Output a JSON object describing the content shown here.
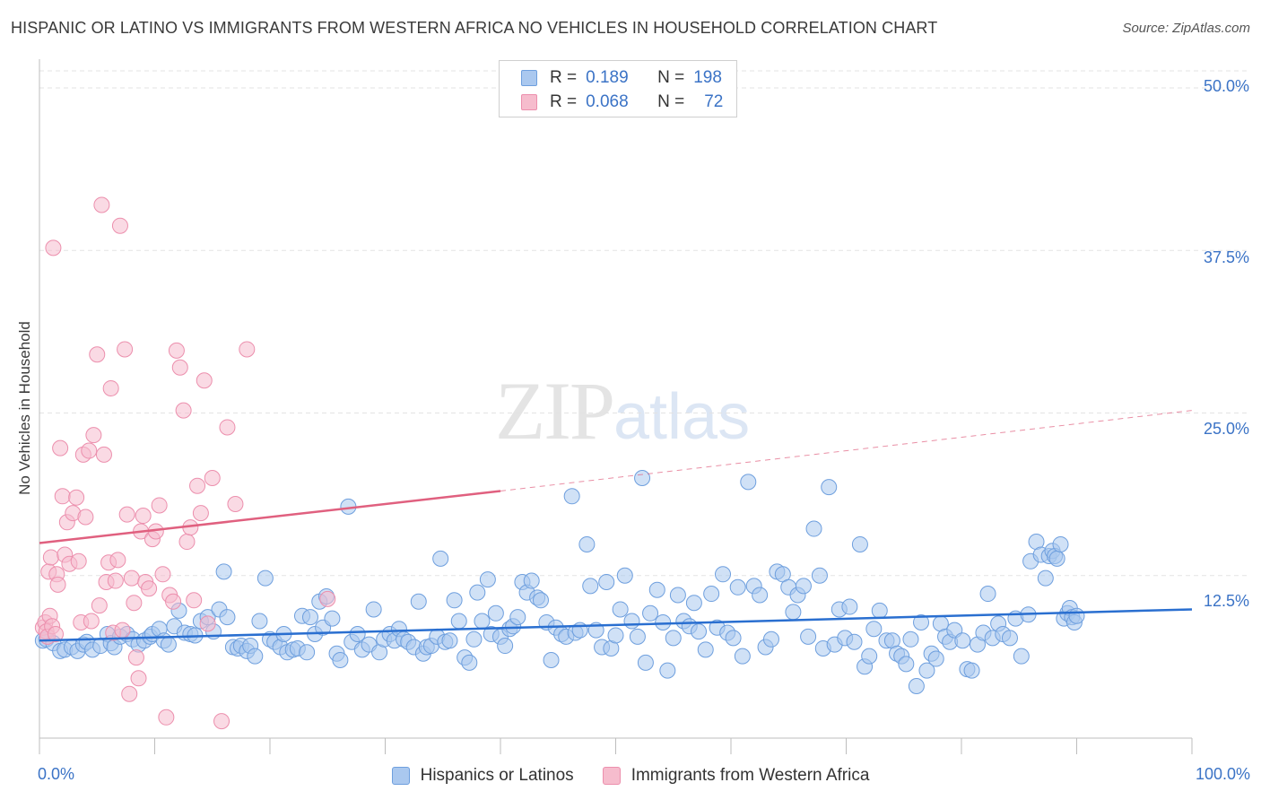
{
  "title": "HISPANIC OR LATINO VS IMMIGRANTS FROM WESTERN AFRICA NO VEHICLES IN HOUSEHOLD CORRELATION CHART",
  "source": "Source: ZipAtlas.com",
  "watermark": {
    "zip": "ZIP",
    "atlas": "atlas"
  },
  "legend": {
    "r_label": "R =",
    "n_label": "N =",
    "series1": {
      "r": "0.189",
      "n": "198"
    },
    "series2": {
      "r": "0.068",
      "n": "72"
    }
  },
  "colors": {
    "blue_fill": "#aac8ef",
    "blue_stroke": "#6e9fde",
    "blue_line": "#2a6fd0",
    "pink_fill": "#f6bccd",
    "pink_stroke": "#ec8fad",
    "pink_line": "#e0607f",
    "tick_text": "#3b73c6"
  },
  "chart_data": {
    "type": "scatter",
    "title": "HISPANIC OR LATINO VS IMMIGRANTS FROM WESTERN AFRICA NO VEHICLES IN HOUSEHOLD CORRELATION CHART",
    "ylabel": "No Vehicles in Household",
    "xlabel": "",
    "xlim": [
      0,
      100
    ],
    "ylim": [
      0,
      50
    ],
    "x_tick_labels": [
      "0.0%",
      "100.0%"
    ],
    "y_tick_labels": [
      "12.5%",
      "25.0%",
      "37.5%",
      "50.0%"
    ],
    "y_ticks": [
      12.5,
      25.0,
      37.5,
      50.0
    ],
    "grid": true,
    "legend_position": "top-center",
    "series": [
      {
        "name": "Hispanics or Latinos",
        "R": 0.189,
        "N": 198,
        "trend": {
          "x0": 0,
          "y0": 7.5,
          "x1": 100,
          "y1": 9.9
        },
        "points": [
          [
            0.3,
            7.5
          ],
          [
            0.6,
            7.6
          ],
          [
            1.2,
            7.3
          ],
          [
            1.8,
            6.7
          ],
          [
            2.2,
            6.8
          ],
          [
            2.8,
            7.0
          ],
          [
            3.3,
            6.7
          ],
          [
            3.8,
            7.2
          ],
          [
            4.1,
            7.4
          ],
          [
            4.6,
            6.8
          ],
          [
            5.3,
            7.1
          ],
          [
            5.9,
            8.0
          ],
          [
            6.2,
            7.3
          ],
          [
            6.5,
            7.0
          ],
          [
            7.0,
            7.8
          ],
          [
            7.6,
            8.0
          ],
          [
            8.1,
            7.6
          ],
          [
            8.6,
            7.2
          ],
          [
            9.1,
            7.5
          ],
          [
            9.6,
            7.8
          ],
          [
            9.8,
            8.0
          ],
          [
            10.4,
            8.4
          ],
          [
            10.8,
            7.5
          ],
          [
            11.2,
            7.2
          ],
          [
            11.7,
            8.6
          ],
          [
            12.1,
            9.8
          ],
          [
            12.6,
            8.1
          ],
          [
            13.1,
            8.0
          ],
          [
            13.5,
            7.9
          ],
          [
            14.0,
            9.0
          ],
          [
            14.6,
            9.3
          ],
          [
            15.1,
            8.2
          ],
          [
            15.6,
            9.9
          ],
          [
            16.0,
            12.8
          ],
          [
            16.3,
            9.3
          ],
          [
            16.8,
            7.0
          ],
          [
            17.2,
            6.9
          ],
          [
            17.5,
            7.1
          ],
          [
            18.0,
            6.7
          ],
          [
            18.3,
            7.1
          ],
          [
            18.7,
            6.3
          ],
          [
            19.1,
            9.0
          ],
          [
            19.6,
            12.3
          ],
          [
            20.0,
            7.6
          ],
          [
            20.4,
            7.4
          ],
          [
            20.9,
            7.0
          ],
          [
            21.2,
            8.0
          ],
          [
            21.5,
            6.6
          ],
          [
            22.0,
            6.8
          ],
          [
            22.4,
            6.9
          ],
          [
            22.8,
            9.4
          ],
          [
            23.2,
            6.6
          ],
          [
            23.5,
            9.3
          ],
          [
            23.9,
            8.0
          ],
          [
            24.3,
            10.5
          ],
          [
            24.6,
            8.5
          ],
          [
            24.9,
            10.9
          ],
          [
            25.4,
            9.2
          ],
          [
            25.8,
            6.5
          ],
          [
            26.1,
            6.0
          ],
          [
            26.8,
            17.8
          ],
          [
            27.1,
            7.4
          ],
          [
            27.6,
            8.0
          ],
          [
            28.0,
            6.8
          ],
          [
            28.6,
            7.2
          ],
          [
            29.0,
            9.9
          ],
          [
            29.5,
            6.6
          ],
          [
            29.9,
            7.6
          ],
          [
            30.4,
            8.0
          ],
          [
            30.8,
            7.5
          ],
          [
            31.2,
            8.4
          ],
          [
            31.6,
            7.6
          ],
          [
            32.0,
            7.4
          ],
          [
            32.5,
            7.0
          ],
          [
            32.9,
            10.5
          ],
          [
            33.3,
            6.5
          ],
          [
            33.6,
            7.0
          ],
          [
            34.0,
            7.1
          ],
          [
            34.5,
            7.8
          ],
          [
            34.8,
            13.8
          ],
          [
            35.2,
            7.4
          ],
          [
            35.6,
            7.5
          ],
          [
            36.0,
            10.6
          ],
          [
            36.4,
            9.0
          ],
          [
            36.9,
            6.2
          ],
          [
            37.3,
            5.8
          ],
          [
            37.7,
            7.6
          ],
          [
            38.0,
            11.2
          ],
          [
            38.4,
            9.0
          ],
          [
            38.9,
            12.2
          ],
          [
            39.2,
            8.0
          ],
          [
            39.6,
            9.6
          ],
          [
            40.0,
            7.8
          ],
          [
            40.4,
            7.1
          ],
          [
            40.8,
            8.4
          ],
          [
            41.1,
            8.6
          ],
          [
            41.5,
            9.3
          ],
          [
            41.9,
            12.0
          ],
          [
            42.3,
            11.2
          ],
          [
            42.7,
            12.1
          ],
          [
            43.2,
            10.8
          ],
          [
            43.5,
            10.6
          ],
          [
            44.0,
            8.9
          ],
          [
            44.4,
            6.0
          ],
          [
            44.8,
            8.5
          ],
          [
            45.3,
            8.0
          ],
          [
            45.7,
            7.8
          ],
          [
            46.2,
            18.6
          ],
          [
            46.5,
            8.1
          ],
          [
            46.9,
            8.3
          ],
          [
            47.5,
            14.9
          ],
          [
            47.8,
            11.7
          ],
          [
            48.3,
            8.3
          ],
          [
            48.8,
            7.0
          ],
          [
            49.2,
            12.0
          ],
          [
            49.6,
            6.9
          ],
          [
            50.0,
            7.9
          ],
          [
            50.4,
            9.9
          ],
          [
            50.8,
            12.5
          ],
          [
            51.4,
            9.0
          ],
          [
            51.9,
            7.8
          ],
          [
            52.3,
            20.0
          ],
          [
            52.6,
            5.8
          ],
          [
            53.0,
            9.6
          ],
          [
            53.6,
            11.4
          ],
          [
            54.1,
            8.9
          ],
          [
            54.5,
            5.2
          ],
          [
            55.0,
            7.7
          ],
          [
            55.4,
            11.0
          ],
          [
            55.9,
            9.0
          ],
          [
            56.4,
            8.6
          ],
          [
            56.8,
            10.4
          ],
          [
            57.2,
            8.2
          ],
          [
            57.8,
            6.8
          ],
          [
            58.3,
            11.1
          ],
          [
            58.8,
            8.5
          ],
          [
            59.3,
            12.6
          ],
          [
            59.7,
            8.1
          ],
          [
            60.2,
            7.7
          ],
          [
            60.6,
            11.6
          ],
          [
            61.0,
            6.3
          ],
          [
            61.5,
            19.7
          ],
          [
            62.0,
            11.7
          ],
          [
            62.5,
            11.0
          ],
          [
            63.0,
            7.0
          ],
          [
            63.5,
            7.6
          ],
          [
            64.0,
            12.8
          ],
          [
            64.5,
            12.6
          ],
          [
            65.0,
            11.6
          ],
          [
            65.4,
            9.7
          ],
          [
            65.8,
            11.0
          ],
          [
            66.3,
            11.7
          ],
          [
            66.7,
            7.8
          ],
          [
            67.2,
            16.1
          ],
          [
            67.7,
            12.5
          ],
          [
            68.0,
            6.9
          ],
          [
            68.5,
            19.3
          ],
          [
            69.0,
            7.2
          ],
          [
            69.4,
            9.9
          ],
          [
            69.9,
            7.7
          ],
          [
            70.3,
            10.1
          ],
          [
            70.7,
            7.4
          ],
          [
            71.2,
            14.9
          ],
          [
            71.6,
            5.5
          ],
          [
            72.0,
            6.3
          ],
          [
            72.4,
            8.4
          ],
          [
            72.9,
            9.8
          ],
          [
            73.5,
            7.5
          ],
          [
            74.0,
            7.5
          ],
          [
            74.4,
            6.5
          ],
          [
            74.8,
            6.3
          ],
          [
            75.2,
            5.7
          ],
          [
            75.6,
            7.6
          ],
          [
            76.1,
            4.0
          ],
          [
            76.5,
            8.9
          ],
          [
            77.0,
            5.2
          ],
          [
            77.4,
            6.5
          ],
          [
            77.8,
            6.1
          ],
          [
            78.2,
            8.8
          ],
          [
            78.6,
            7.8
          ],
          [
            79.0,
            7.4
          ],
          [
            79.4,
            8.3
          ],
          [
            80.1,
            7.5
          ],
          [
            80.5,
            5.3
          ],
          [
            80.9,
            5.2
          ],
          [
            81.4,
            7.2
          ],
          [
            81.9,
            8.1
          ],
          [
            82.3,
            11.1
          ],
          [
            82.7,
            7.7
          ],
          [
            83.2,
            8.8
          ],
          [
            83.6,
            8.0
          ],
          [
            84.2,
            7.7
          ],
          [
            84.7,
            9.2
          ],
          [
            85.2,
            6.3
          ],
          [
            85.8,
            9.5
          ],
          [
            86.0,
            13.6
          ],
          [
            86.5,
            15.1
          ],
          [
            86.9,
            14.1
          ],
          [
            87.3,
            12.3
          ],
          [
            87.6,
            14.0
          ],
          [
            87.9,
            14.4
          ],
          [
            88.1,
            14.0
          ],
          [
            88.3,
            13.8
          ],
          [
            88.6,
            14.9
          ],
          [
            88.9,
            9.2
          ],
          [
            89.2,
            9.6
          ],
          [
            89.4,
            10.0
          ],
          [
            89.6,
            9.3
          ],
          [
            89.8,
            8.9
          ],
          [
            90.0,
            9.4
          ]
        ]
      },
      {
        "name": "Immigrants from Western Africa",
        "R": 0.068,
        "N": 72,
        "trend_solid": {
          "x0": 0,
          "y0": 15.0,
          "x1": 40,
          "y1": 19.0
        },
        "trend_dashed": {
          "x0": 40,
          "y0": 19.0,
          "x1": 100,
          "y1": 25.2
        },
        "points": [
          [
            0.3,
            8.5
          ],
          [
            0.5,
            8.9
          ],
          [
            0.6,
            8.2
          ],
          [
            0.7,
            7.8
          ],
          [
            0.8,
            12.8
          ],
          [
            0.9,
            9.4
          ],
          [
            1.0,
            13.9
          ],
          [
            1.1,
            8.6
          ],
          [
            1.2,
            37.7
          ],
          [
            1.4,
            8.0
          ],
          [
            1.5,
            12.6
          ],
          [
            1.6,
            11.8
          ],
          [
            1.8,
            22.3
          ],
          [
            2.0,
            18.6
          ],
          [
            2.2,
            14.1
          ],
          [
            2.4,
            16.6
          ],
          [
            2.6,
            13.4
          ],
          [
            2.9,
            17.3
          ],
          [
            3.2,
            18.5
          ],
          [
            3.4,
            13.6
          ],
          [
            3.6,
            8.9
          ],
          [
            3.8,
            21.8
          ],
          [
            4.0,
            17.0
          ],
          [
            4.3,
            22.1
          ],
          [
            4.5,
            9.0
          ],
          [
            4.7,
            23.3
          ],
          [
            5.0,
            29.5
          ],
          [
            5.2,
            10.2
          ],
          [
            5.4,
            41.0
          ],
          [
            5.6,
            21.8
          ],
          [
            5.8,
            12.0
          ],
          [
            6.0,
            13.5
          ],
          [
            6.2,
            26.9
          ],
          [
            6.4,
            8.1
          ],
          [
            6.6,
            12.1
          ],
          [
            6.8,
            13.7
          ],
          [
            7.0,
            39.4
          ],
          [
            7.2,
            8.3
          ],
          [
            7.4,
            29.9
          ],
          [
            7.6,
            17.2
          ],
          [
            7.8,
            3.4
          ],
          [
            8.0,
            12.3
          ],
          [
            8.2,
            10.4
          ],
          [
            8.4,
            6.2
          ],
          [
            8.6,
            4.6
          ],
          [
            8.8,
            15.9
          ],
          [
            9.0,
            17.1
          ],
          [
            9.2,
            12.0
          ],
          [
            9.5,
            11.5
          ],
          [
            9.8,
            15.3
          ],
          [
            10.1,
            15.9
          ],
          [
            10.4,
            17.9
          ],
          [
            10.7,
            12.6
          ],
          [
            11.0,
            1.6
          ],
          [
            11.3,
            11.0
          ],
          [
            11.6,
            10.5
          ],
          [
            11.9,
            29.8
          ],
          [
            12.2,
            28.5
          ],
          [
            12.5,
            25.2
          ],
          [
            12.8,
            15.1
          ],
          [
            13.1,
            16.2
          ],
          [
            13.4,
            10.6
          ],
          [
            13.7,
            19.4
          ],
          [
            14.0,
            17.3
          ],
          [
            14.3,
            27.5
          ],
          [
            14.6,
            8.8
          ],
          [
            15.0,
            20.0
          ],
          [
            15.8,
            1.3
          ],
          [
            16.3,
            23.9
          ],
          [
            17.0,
            18.0
          ],
          [
            18.0,
            29.9
          ],
          [
            25.0,
            10.7
          ]
        ]
      }
    ]
  },
  "bottom_legend": {
    "series1": "Hispanics or Latinos",
    "series2": "Immigrants from Western Africa"
  },
  "axes": {
    "xmin_label": "0.0%",
    "xmax_label": "100.0%"
  }
}
